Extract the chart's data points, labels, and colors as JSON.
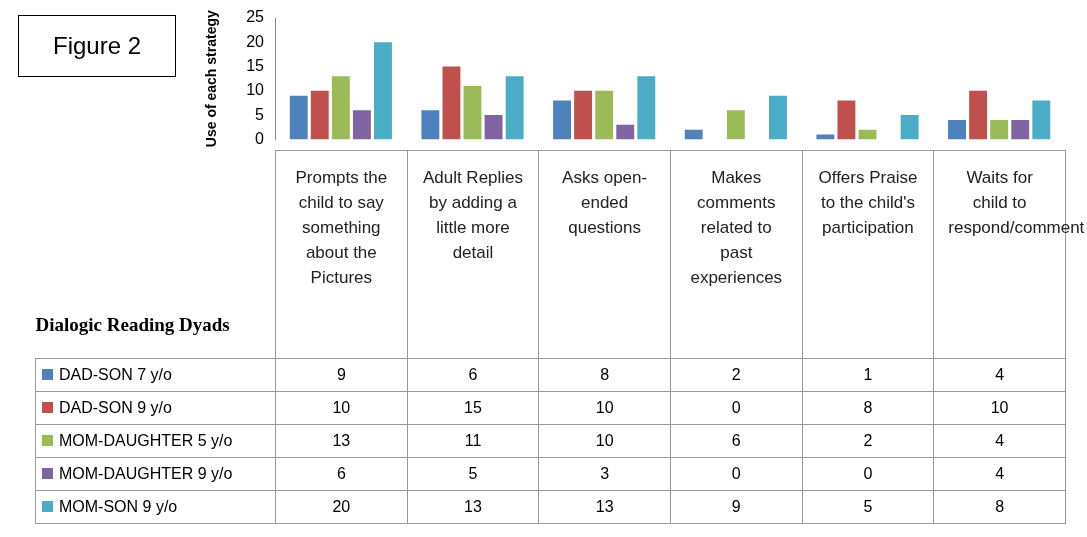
{
  "chart_data": {
    "type": "bar",
    "annotations": [
      "Figure 2"
    ],
    "ylabel": "Use of each strategy",
    "xlabel": "Dialogic Reading Dyads",
    "categories": [
      "Prompts the child to say something about the Pictures",
      "Adult Replies by adding a little more detail",
      "Asks open-ended questions",
      "Makes comments related to past experiences",
      "Offers Praise to the child's participation",
      "Waits for child to respond/comment"
    ],
    "series": [
      {
        "name": "DAD-SON 7 y/o",
        "color": "#4f81bd",
        "values": [
          9,
          6,
          8,
          2,
          1,
          4
        ]
      },
      {
        "name": "DAD-SON 9 y/o",
        "color": "#c0504d",
        "values": [
          10,
          15,
          10,
          0,
          8,
          10
        ]
      },
      {
        "name": "MOM-DAUGHTER 5 y/o",
        "color": "#9bbb59",
        "values": [
          13,
          11,
          10,
          6,
          2,
          4
        ]
      },
      {
        "name": "MOM-DAUGHTER 9 y/o",
        "color": "#8064a2",
        "values": [
          6,
          5,
          3,
          0,
          0,
          4
        ]
      },
      {
        "name": "MOM-SON  9 y/o",
        "color": "#4bacc6",
        "values": [
          20,
          13,
          13,
          9,
          5,
          8
        ]
      }
    ],
    "ylim": [
      0,
      25
    ],
    "yticks": [
      0,
      5,
      10,
      15,
      20,
      25
    ],
    "grid": false,
    "legend": "bottom",
    "data_labels": true
  }
}
